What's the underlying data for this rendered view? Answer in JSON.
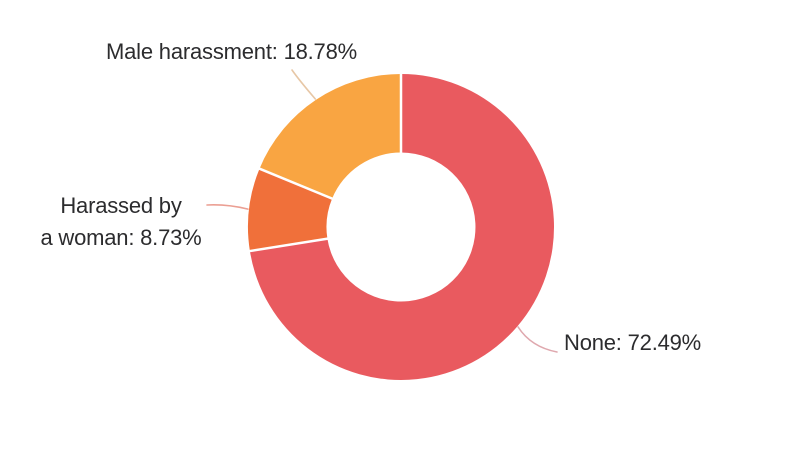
{
  "page": {
    "background": "#ffffff",
    "text_color": "#2c2c2e"
  },
  "chart_data": {
    "type": "pie",
    "subtype": "donut",
    "title": "",
    "legend_position": "none",
    "labels_style": "outside-callout",
    "start_angle_deg": 0,
    "direction": "clockwise",
    "inner_radius_ratio": 0.487,
    "separator_color": "#ffffff",
    "segments": [
      {
        "label": "None",
        "value": 72.49,
        "display": "None: 72.49%",
        "color": "#e95a5f",
        "leader_color": "#dfa8ae"
      },
      {
        "label": "Harassed by a woman",
        "value": 8.73,
        "display": "Harassed by a woman: 8.73%",
        "display_lines": [
          "Harassed by",
          "a woman: 8.73%"
        ],
        "color": "#f0703a",
        "leader_color": "#eb9f93"
      },
      {
        "label": "Male harassment",
        "value": 18.78,
        "display": "Male harassment: 18.78%",
        "color": "#f9a542",
        "leader_color": "#e7c7a6"
      }
    ]
  }
}
